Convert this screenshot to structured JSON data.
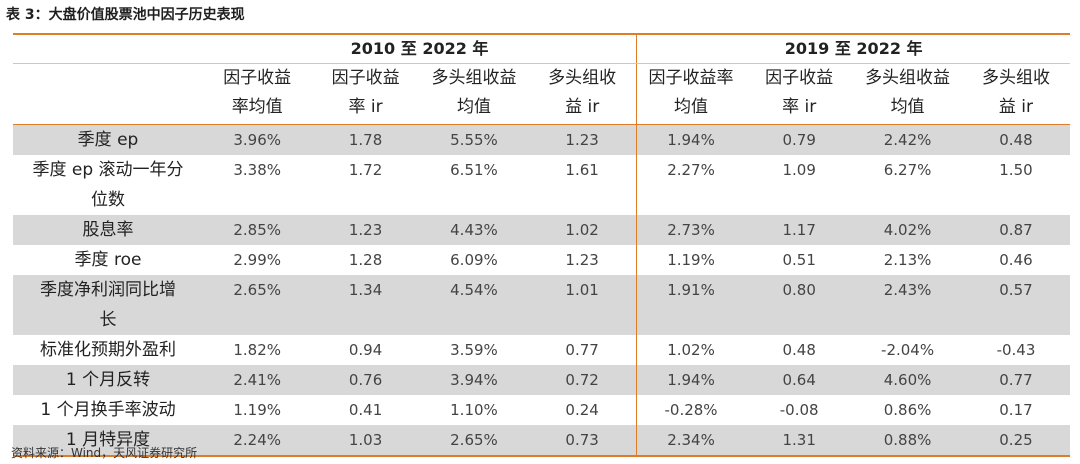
{
  "title": "表 3：大盘价值股票池中因子历史表现",
  "groups": [
    "2010 至 2022 年",
    "2019 至 2022 年"
  ],
  "col_headers": [
    [
      "因子收益",
      "率均值"
    ],
    [
      "因子收益",
      "率 ir"
    ],
    [
      "多头组收益",
      "均值"
    ],
    [
      "多头组收",
      "益 ir"
    ],
    [
      "因子收益率",
      "均值"
    ],
    [
      "因子收益",
      "率 ir"
    ],
    [
      "多头组收益",
      "均值"
    ],
    [
      "多头组收",
      "益 ir"
    ]
  ],
  "rows": [
    {
      "label": [
        "季度 ep"
      ],
      "values": [
        "3.96%",
        "1.78",
        "5.55%",
        "1.23",
        "1.94%",
        "0.79",
        "2.42%",
        "0.48"
      ]
    },
    {
      "label": [
        "季度 ep 滚动一年分",
        "位数"
      ],
      "values": [
        "3.38%",
        "1.72",
        "6.51%",
        "1.61",
        "2.27%",
        "1.09",
        "6.27%",
        "1.50"
      ]
    },
    {
      "label": [
        "股息率"
      ],
      "values": [
        "2.85%",
        "1.23",
        "4.43%",
        "1.02",
        "2.73%",
        "1.17",
        "4.02%",
        "0.87"
      ]
    },
    {
      "label": [
        "季度 roe"
      ],
      "values": [
        "2.99%",
        "1.28",
        "6.09%",
        "1.23",
        "1.19%",
        "0.51",
        "2.13%",
        "0.46"
      ]
    },
    {
      "label": [
        "季度净利润同比增",
        "长"
      ],
      "values": [
        "2.65%",
        "1.34",
        "4.54%",
        "1.01",
        "1.91%",
        "0.80",
        "2.43%",
        "0.57"
      ]
    },
    {
      "label": [
        "标准化预期外盈利"
      ],
      "values": [
        "1.82%",
        "0.94",
        "3.59%",
        "0.77",
        "1.02%",
        "0.48",
        "-2.04%",
        "-0.43"
      ]
    },
    {
      "label": [
        "1 个月反转"
      ],
      "values": [
        "2.41%",
        "0.76",
        "3.94%",
        "0.72",
        "1.94%",
        "0.64",
        "4.60%",
        "0.77"
      ]
    },
    {
      "label": [
        "1 个月换手率波动"
      ],
      "values": [
        "1.19%",
        "0.41",
        "1.10%",
        "0.24",
        "-0.28%",
        "-0.08",
        "0.86%",
        "0.17"
      ]
    },
    {
      "label": [
        "1 月特异度"
      ],
      "values": [
        "2.24%",
        "1.03",
        "2.65%",
        "0.73",
        "2.34%",
        "1.31",
        "0.88%",
        "0.25"
      ]
    }
  ],
  "shaded_rows": [
    0,
    2,
    4,
    6,
    8
  ],
  "source": "资料来源：Wind，天风证券研究所",
  "colors": {
    "accent": "#e07b28",
    "shade": "#d8d8d8"
  }
}
